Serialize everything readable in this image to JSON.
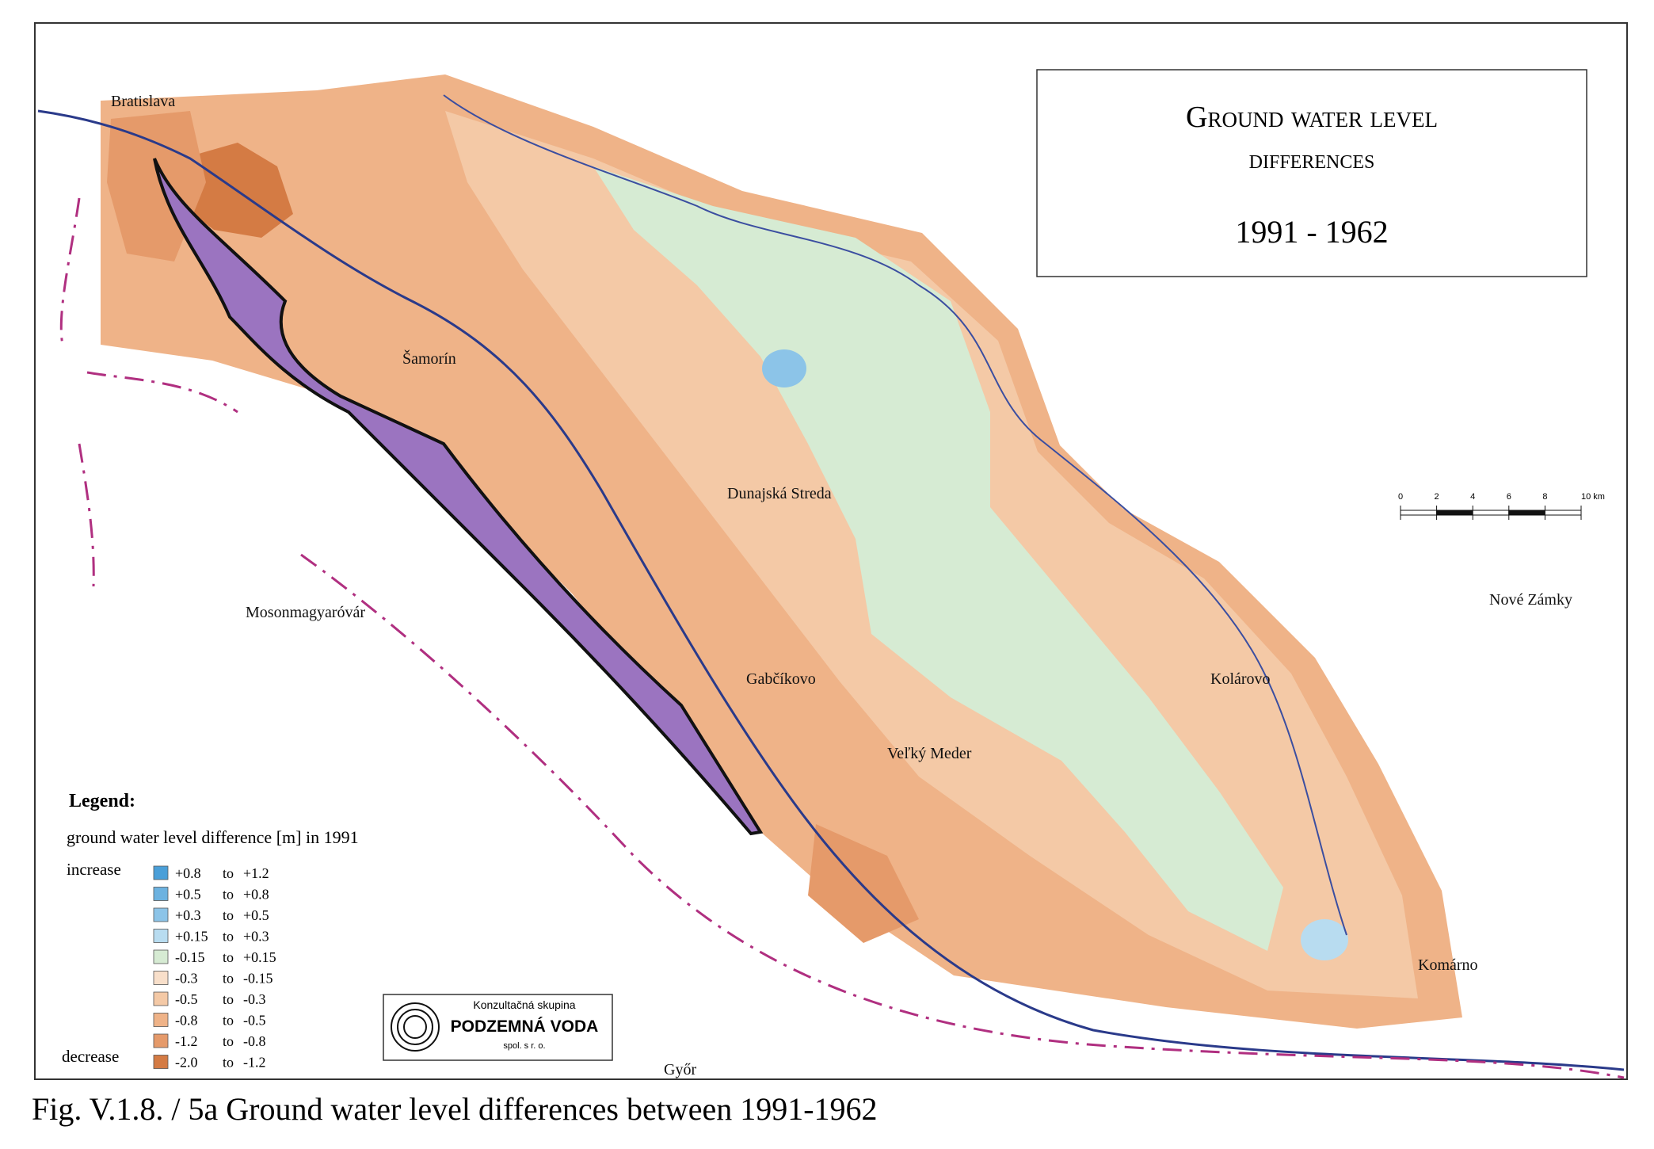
{
  "header": {
    "title_line1": "Ground water level",
    "title_line2": "differences",
    "period": "1991 - 1962"
  },
  "legend": {
    "title": "Legend:",
    "subtitle": "ground water level difference [m] in 1991",
    "increase": "increase",
    "decrease": "decrease",
    "to": "to",
    "items": [
      {
        "from": "+0.8",
        "to": "+1.2",
        "color": "#4a9fd8"
      },
      {
        "from": "+0.5",
        "to": "+0.8",
        "color": "#6cb2e0"
      },
      {
        "from": "+0.3",
        "to": "+0.5",
        "color": "#8cc4e8"
      },
      {
        "from": "+0.15",
        "to": "+0.3",
        "color": "#b8dcf0"
      },
      {
        "from": "-0.15",
        "to": "+0.15",
        "color": "#d6ebd3"
      },
      {
        "from": "-0.3",
        "to": "-0.15",
        "color": "#f8dfca"
      },
      {
        "from": "-0.5",
        "to": "-0.3",
        "color": "#f4c9a6"
      },
      {
        "from": "-0.8",
        "to": "-0.5",
        "color": "#efb388"
      },
      {
        "from": "-1.2",
        "to": "-0.8",
        "color": "#e59a6a"
      },
      {
        "from": "-2.0",
        "to": "-1.2",
        "color": "#d47b44"
      }
    ]
  },
  "scale_bar": {
    "labels": [
      "0",
      "2",
      "4",
      "6",
      "8",
      "10 km"
    ]
  },
  "logo": {
    "line1": "Konzultačná skupina",
    "line2": "PODZEMNÁ VODA",
    "line3": "spol. s r. o."
  },
  "places": [
    "Bratislava",
    "Šamorín",
    "Dunajská Streda",
    "Gabčíkovo",
    "Veľký Meder",
    "Kolárovo",
    "Komárno",
    "Nové Zámky",
    "Mosonmagyaróvár",
    "Győr"
  ],
  "caption": "Fig. V.1.8. / 5a  Ground water level differences between 1991-1962"
}
